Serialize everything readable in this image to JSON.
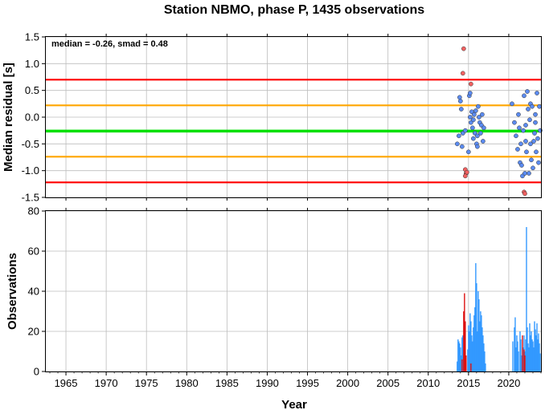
{
  "chart_data": [
    {
      "type": "scatter",
      "title": "Station NBMO, phase P, 1435 observations",
      "annotation": "median = -0.26, smad = 0.48",
      "xlabel": "",
      "ylabel": "Median residual [s]",
      "xlim": [
        1962.5,
        2024.0
      ],
      "ylim": [
        -1.5,
        1.5
      ],
      "yticks": [
        "1.5",
        "1.0",
        "0.5",
        "0.0",
        "-0.5",
        "-1.0",
        "-1.5"
      ],
      "grid": true,
      "reference_lines": [
        {
          "y": 0.7,
          "color": "#ff0000"
        },
        {
          "y": 0.22,
          "color": "#ffa500"
        },
        {
          "y": -0.26,
          "color": "#00e000"
        },
        {
          "y": -0.74,
          "color": "#ffa500"
        },
        {
          "y": -1.22,
          "color": "#ff0000"
        }
      ],
      "series": [
        {
          "color": "#5b8bf0",
          "points": [
            [
              2013.6,
              -0.5
            ],
            [
              2013.9,
              0.37
            ],
            [
              2013.8,
              -0.35
            ],
            [
              2014.0,
              0.3
            ],
            [
              2014.1,
              0.15
            ],
            [
              2014.2,
              -0.55
            ],
            [
              2014.3,
              -0.3
            ],
            [
              2014.6,
              -0.25
            ],
            [
              2015.0,
              -0.65
            ],
            [
              2015.1,
              0.4
            ],
            [
              2015.2,
              0.45
            ],
            [
              2015.2,
              0.0
            ],
            [
              2015.3,
              -0.1
            ],
            [
              2015.4,
              0.1
            ],
            [
              2015.5,
              -0.2
            ],
            [
              2015.6,
              -0.4
            ],
            [
              2015.6,
              -0.05
            ],
            [
              2015.7,
              0.05
            ],
            [
              2015.8,
              -0.3
            ],
            [
              2015.9,
              0.12
            ],
            [
              2016.0,
              -0.5
            ],
            [
              2016.1,
              -0.35
            ],
            [
              2016.1,
              -0.55
            ],
            [
              2016.2,
              0.2
            ],
            [
              2016.3,
              0.0
            ],
            [
              2016.4,
              -0.1
            ],
            [
              2016.5,
              -0.3
            ],
            [
              2016.6,
              -0.15
            ],
            [
              2016.7,
              0.05
            ],
            [
              2016.8,
              -0.45
            ],
            [
              2016.9,
              -0.2
            ],
            [
              2020.4,
              0.25
            ],
            [
              2020.7,
              -0.1
            ],
            [
              2020.9,
              -0.35
            ],
            [
              2021.1,
              -0.6
            ],
            [
              2021.2,
              0.05
            ],
            [
              2021.3,
              -0.2
            ],
            [
              2021.4,
              -0.85
            ],
            [
              2021.5,
              -0.5
            ],
            [
              2021.7,
              -1.1
            ],
            [
              2021.8,
              -0.25
            ],
            [
              2021.9,
              0.4
            ],
            [
              2022.0,
              -1.05
            ],
            [
              2022.1,
              -0.45
            ],
            [
              2022.2,
              -0.65
            ],
            [
              2022.3,
              0.48
            ],
            [
              2022.4,
              0.15
            ],
            [
              2022.5,
              -1.05
            ],
            [
              2022.6,
              -0.05
            ],
            [
              2022.7,
              0.25
            ],
            [
              2022.8,
              -0.8
            ],
            [
              2022.9,
              0.2
            ],
            [
              2023.0,
              -0.95
            ],
            [
              2023.1,
              -0.45
            ],
            [
              2023.2,
              -0.3
            ],
            [
              2023.3,
              0.05
            ],
            [
              2023.4,
              -0.65
            ],
            [
              2023.5,
              0.45
            ],
            [
              2023.6,
              -0.4
            ],
            [
              2023.7,
              -0.85
            ],
            [
              2023.8,
              0.2
            ],
            [
              2023.9,
              -0.25
            ],
            [
              2022.1,
              -0.15
            ],
            [
              2022.7,
              -0.5
            ],
            [
              2021.6,
              -0.9
            ],
            [
              2023.3,
              -0.1
            ]
          ]
        },
        {
          "color": "#f06060",
          "points": [
            [
              2014.4,
              1.28
            ],
            [
              2014.3,
              0.82
            ],
            [
              2015.3,
              0.62
            ],
            [
              2014.6,
              -0.98
            ],
            [
              2014.7,
              -1.05
            ],
            [
              2014.8,
              -1.03
            ],
            [
              2014.6,
              -1.1
            ],
            [
              2021.9,
              -1.4
            ],
            [
              2022.0,
              -1.43
            ]
          ]
        }
      ]
    },
    {
      "type": "bar",
      "xlabel": "Year",
      "ylabel": "Observations",
      "xlim": [
        1962.5,
        2024.0
      ],
      "ylim": [
        0,
        80
      ],
      "xticks": [
        "1965",
        "1970",
        "1975",
        "1980",
        "1985",
        "1990",
        "1995",
        "2000",
        "2005",
        "2010",
        "2015",
        "2020"
      ],
      "yticks": [
        "0",
        "20",
        "40",
        "60",
        "80"
      ],
      "grid": true,
      "series": [
        {
          "color": "#3399ff",
          "bins": [
            [
              2013.6,
              5
            ],
            [
              2013.7,
              16
            ],
            [
              2013.8,
              15
            ],
            [
              2013.9,
              14
            ],
            [
              2014.0,
              12
            ],
            [
              2014.1,
              8
            ],
            [
              2014.2,
              17
            ],
            [
              2014.3,
              18
            ],
            [
              2014.5,
              12
            ],
            [
              2014.6,
              10
            ],
            [
              2014.7,
              5
            ],
            [
              2014.9,
              11
            ],
            [
              2015.0,
              23
            ],
            [
              2015.1,
              20
            ],
            [
              2015.2,
              29
            ],
            [
              2015.3,
              25
            ],
            [
              2015.4,
              18
            ],
            [
              2015.5,
              15
            ],
            [
              2015.6,
              22
            ],
            [
              2015.7,
              28
            ],
            [
              2015.8,
              32
            ],
            [
              2015.9,
              54
            ],
            [
              2016.0,
              44
            ],
            [
              2016.1,
              20
            ],
            [
              2016.2,
              40
            ],
            [
              2016.3,
              36
            ],
            [
              2016.4,
              25
            ],
            [
              2016.5,
              30
            ],
            [
              2016.6,
              28
            ],
            [
              2016.7,
              22
            ],
            [
              2016.8,
              18
            ],
            [
              2016.9,
              14
            ],
            [
              2017.0,
              10
            ],
            [
              2017.1,
              4
            ],
            [
              2020.5,
              15
            ],
            [
              2020.7,
              22
            ],
            [
              2020.8,
              27
            ],
            [
              2020.9,
              12
            ],
            [
              2021.0,
              18
            ],
            [
              2021.1,
              15
            ],
            [
              2021.2,
              10
            ],
            [
              2021.4,
              20
            ],
            [
              2021.5,
              16
            ],
            [
              2021.6,
              8
            ],
            [
              2021.8,
              12
            ],
            [
              2021.9,
              18
            ],
            [
              2022.0,
              10
            ],
            [
              2022.1,
              16
            ],
            [
              2022.2,
              72
            ],
            [
              2022.3,
              22
            ],
            [
              2022.4,
              14
            ],
            [
              2022.5,
              12
            ],
            [
              2022.6,
              24
            ],
            [
              2022.7,
              18
            ],
            [
              2022.8,
              20
            ],
            [
              2022.9,
              16
            ],
            [
              2023.0,
              15
            ],
            [
              2023.1,
              12
            ],
            [
              2023.2,
              25
            ],
            [
              2023.3,
              21
            ],
            [
              2023.4,
              18
            ],
            [
              2023.5,
              24
            ],
            [
              2023.6,
              16
            ],
            [
              2023.7,
              19
            ],
            [
              2023.8,
              14
            ],
            [
              2023.9,
              9
            ]
          ]
        },
        {
          "color": "#dd1111",
          "bins": [
            [
              2014.2,
              6
            ],
            [
              2014.4,
              30
            ],
            [
              2014.5,
              39
            ],
            [
              2014.6,
              25
            ],
            [
              2014.7,
              8
            ],
            [
              2015.3,
              4
            ],
            [
              2021.7,
              18
            ],
            [
              2021.9,
              11
            ],
            [
              2022.0,
              8
            ]
          ]
        }
      ]
    }
  ]
}
